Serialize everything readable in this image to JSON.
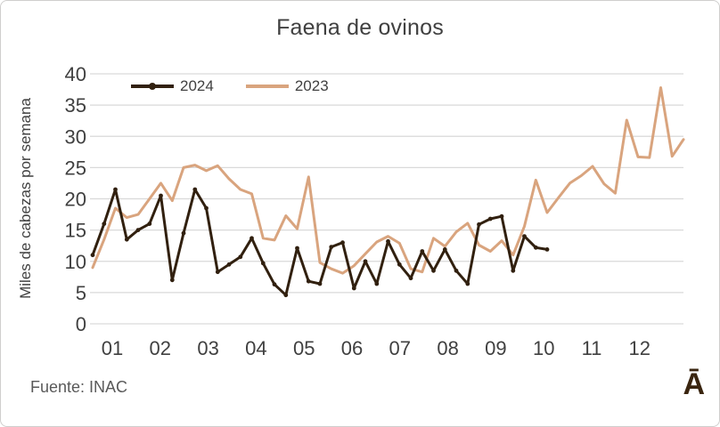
{
  "frame": {
    "title": "Faena de ovinos",
    "source": "Fuente: INAC",
    "logo_glyph": "Ā"
  },
  "colors": {
    "series_2024": "#31200f",
    "series_2023": "#d9a47e",
    "gridline": "#d9d9d9",
    "tick_text": "#404040",
    "title_text": "#404040",
    "source_text": "#595959",
    "logo_brown": "#3a2510"
  },
  "chart_data": {
    "type": "line",
    "title": "Faena de ovinos",
    "xlabel": "",
    "ylabel": "Miles de cabezas por semana",
    "x_unit": "semana (weekly points)",
    "x_tick_labels": [
      "01",
      "02",
      "03",
      "04",
      "05",
      "06",
      "07",
      "08",
      "09",
      "10",
      "11",
      "12"
    ],
    "y_ticks": [
      0,
      5,
      10,
      15,
      20,
      25,
      30,
      35,
      40
    ],
    "ylim": [
      0,
      40
    ],
    "grid": "horizontal",
    "legend_position": "top-inside-left",
    "series": [
      {
        "name": "2024",
        "color": "#31200f",
        "marker": true,
        "values": [
          11,
          16,
          21.5,
          13.5,
          15,
          16,
          20.5,
          7,
          14.5,
          21.5,
          18.5,
          8.3,
          9.5,
          10.7,
          13.7,
          9.7,
          6.3,
          4.6,
          12.1,
          6.8,
          6.4,
          12.3,
          13,
          5.7,
          10,
          6.4,
          13.2,
          9.5,
          7.3,
          11.6,
          8.5,
          11.9,
          8.5,
          6.4,
          15.9,
          16.8,
          17.2,
          8.5,
          14,
          12.2,
          11.9
        ]
      },
      {
        "name": "2023",
        "color": "#d9a47e",
        "marker": false,
        "values": [
          9,
          13.5,
          18.5,
          17,
          17.5,
          20,
          22.5,
          19.7,
          25,
          25.4,
          24.5,
          25.3,
          23.2,
          21.5,
          20.8,
          13.7,
          13.4,
          17.3,
          15.2,
          23.5,
          9.8,
          8.8,
          8.1,
          9.3,
          11.2,
          13.1,
          14,
          12.9,
          8.8,
          8.3,
          13.7,
          12.4,
          14.7,
          16.1,
          12.6,
          11.6,
          13.3,
          11,
          15.6,
          23,
          17.8,
          20.2,
          22.5,
          23.7,
          25.2,
          22.4,
          20.9,
          32.6,
          26.7,
          26.6,
          37.8,
          26.8,
          29.5
        ]
      }
    ]
  }
}
